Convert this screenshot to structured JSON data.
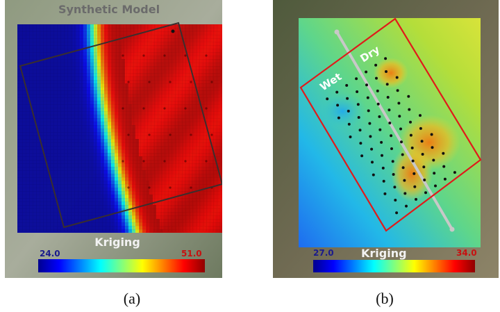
{
  "panel_a": {
    "title": "Synthetic Model",
    "method_label": "Kriging",
    "scale_min": "24.0",
    "scale_max": "51.0",
    "caption": "(a)"
  },
  "panel_b": {
    "wet_label": "Wet",
    "dry_label": "Dry",
    "method_label": "Kriging",
    "scale_min": "27.0",
    "scale_max": "34.0",
    "caption": "(b)"
  },
  "colors": {
    "low": "#00008f",
    "high": "#8f0000",
    "field_outline_a": "#3a2e2e",
    "field_outline_b": "#e01a1a",
    "transect": "#c8c8c8",
    "samples": "#111111"
  }
}
